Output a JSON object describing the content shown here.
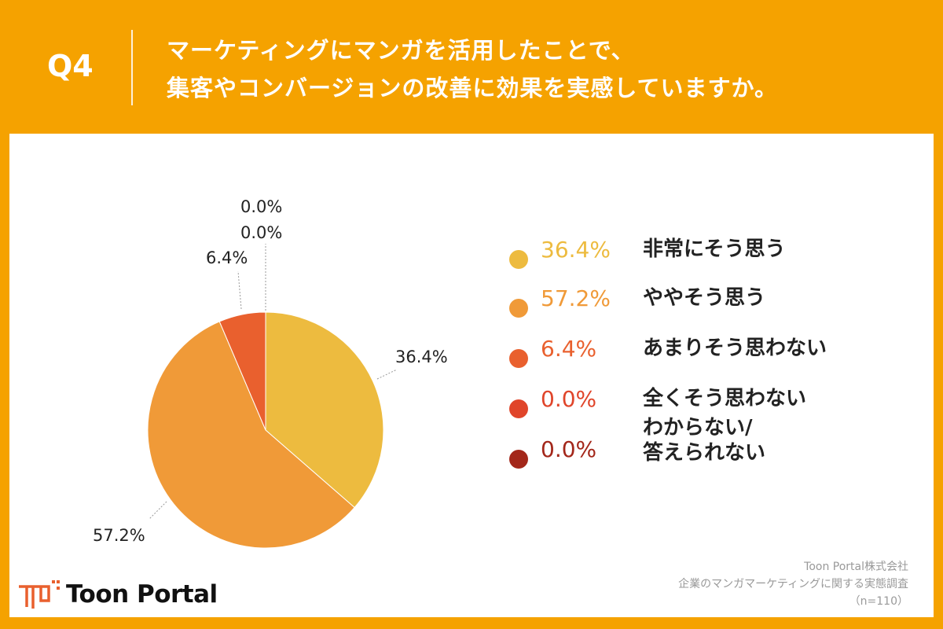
{
  "header": {
    "question": "Q4",
    "title_lines": [
      "マーケティングにマンガを活用したことで、",
      "集客やコンバージョンの改善に効果を実感していますか。"
    ]
  },
  "chart_data": {
    "type": "pie",
    "start": "top, clockwise",
    "slices": [
      {
        "label": "非常にそう思う",
        "value": 36.4,
        "display": "36.4%",
        "color": "#EDBB3F"
      },
      {
        "label": "ややそう思う",
        "value": 57.2,
        "display": "57.2%",
        "color": "#F09A38"
      },
      {
        "label": "あまりそう思わない",
        "value": 6.4,
        "display": "6.4%",
        "color": "#E9602E"
      },
      {
        "label": "全くそう思わない",
        "value": 0.0,
        "display": "0.0%",
        "color": "#E0452A"
      },
      {
        "label": "わからない/\n答えられない",
        "value": 0.0,
        "display": "0.0%",
        "color": "#A3271A"
      }
    ],
    "legend": "right"
  },
  "logo": {
    "text": "Toon Portal"
  },
  "source": {
    "lines": [
      "Toon Portal株式会社",
      "企業のマンガマーケティングに関する実態調査",
      "（n=110）"
    ]
  }
}
